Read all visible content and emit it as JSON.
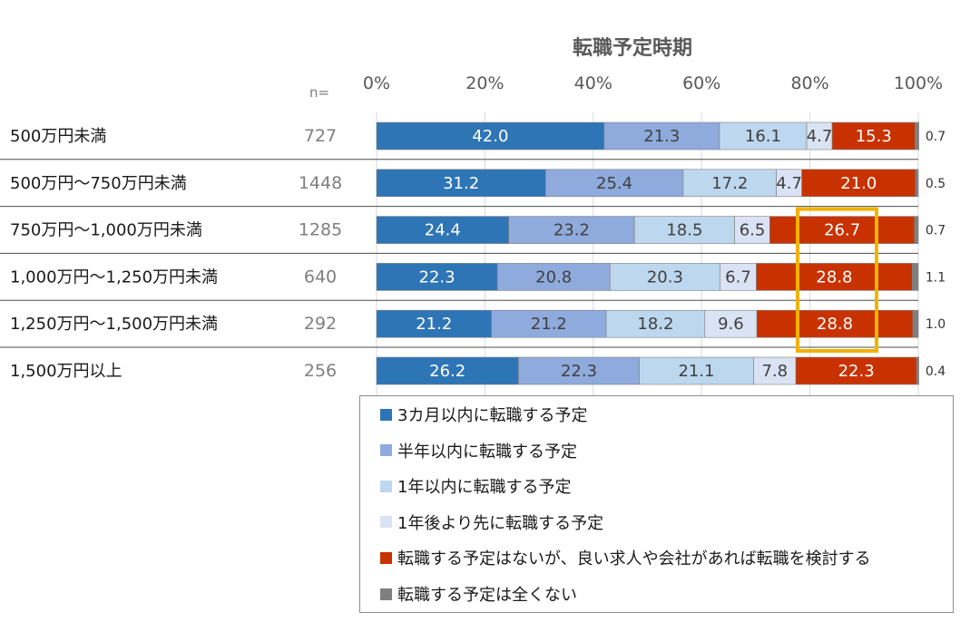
{
  "chart_data": {
    "type": "bar",
    "orientation": "horizontal-stacked-100",
    "title": "転職予定時期",
    "n_header": "n=",
    "x_ticks": [
      "0%",
      "20%",
      "40%",
      "60%",
      "80%",
      "100%"
    ],
    "xlim": [
      0,
      100
    ],
    "grid": true,
    "legend_position": "bottom-right",
    "categories": [
      "500万円未満",
      "500万円～750万円未満",
      "750万円～1,000万円未満",
      "1,000万円～1,250万円未満",
      "1,250万円～1,500万円未満",
      "1,500万円以上"
    ],
    "n": [
      "727",
      "1448",
      "1285",
      "640",
      "292",
      "256"
    ],
    "series": [
      {
        "name": "3カ月以内に転職する予定",
        "color": "#2e75b6",
        "label_color": "#ffffff",
        "values": [
          42.0,
          31.2,
          24.4,
          22.3,
          21.2,
          26.2
        ],
        "labels": [
          "42.0",
          "31.2",
          "24.4",
          "22.3",
          "21.2",
          "26.2"
        ]
      },
      {
        "name": "半年以内に転職する予定",
        "color": "#8faadc",
        "label_color": "#404040",
        "values": [
          21.3,
          25.4,
          23.2,
          20.8,
          21.2,
          22.3
        ],
        "labels": [
          "21.3",
          "25.4",
          "23.2",
          "20.8",
          "21.2",
          "22.3"
        ]
      },
      {
        "name": "1年以内に転職する予定",
        "color": "#bdd7ee",
        "label_color": "#404040",
        "values": [
          16.1,
          17.2,
          18.5,
          20.3,
          18.2,
          21.1
        ],
        "labels": [
          "16.1",
          "17.2",
          "18.5",
          "20.3",
          "18.2",
          "21.1"
        ]
      },
      {
        "name": "1年後より先に転職する予定",
        "color": "#dae3f3",
        "label_color": "#404040",
        "values": [
          4.7,
          4.7,
          6.5,
          6.7,
          9.6,
          7.8
        ],
        "labels": [
          "4.7",
          "4.7",
          "6.5",
          "6.7",
          "9.6",
          "7.8"
        ]
      },
      {
        "name": "転職する予定はないが、良い求人や会社があれば転職を検討する",
        "color": "#c83200",
        "label_color": "#ffffff",
        "values": [
          15.3,
          21.0,
          26.7,
          28.8,
          28.8,
          22.3
        ],
        "labels": [
          "15.3",
          "21.0",
          "26.7",
          "28.8",
          "28.8",
          "22.3"
        ]
      },
      {
        "name": "転職する予定は全くない",
        "color": "#7f7f7f",
        "label_color": "#333333",
        "values": [
          0.7,
          0.5,
          0.7,
          1.1,
          1.0,
          0.4
        ],
        "labels": [
          "0.7",
          "0.5",
          "0.7",
          "1.1",
          "1.0",
          "0.4"
        ]
      }
    ],
    "highlight": {
      "series_index": 4,
      "rows": [
        2,
        3,
        4
      ],
      "color": "#f2b200"
    }
  }
}
